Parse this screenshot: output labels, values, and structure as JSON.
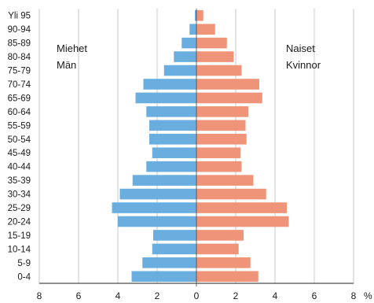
{
  "chart_data": {
    "type": "bar",
    "orientation": "horizontal-population-pyramid",
    "categories": [
      "0-4",
      "5-9",
      "10-14",
      "15-19",
      "20-24",
      "25-29",
      "30-34",
      "35-39",
      "40-44",
      "45-49",
      "50-54",
      "55-59",
      "60-64",
      "65-69",
      "70-74",
      "75-79",
      "80-84",
      "85-89",
      "90-94",
      "Yli 95"
    ],
    "series": [
      {
        "values": [
          3.3,
          2.75,
          2.25,
          2.2,
          4.0,
          4.3,
          3.9,
          3.25,
          2.55,
          2.25,
          2.4,
          2.4,
          2.55,
          3.1,
          2.7,
          1.65,
          1.15,
          0.75,
          0.35,
          0.08
        ],
        "color": "#6aaee0",
        "side": "left"
      },
      {
        "values": [
          3.15,
          2.75,
          2.15,
          2.4,
          4.7,
          4.6,
          3.55,
          2.9,
          2.3,
          2.25,
          2.55,
          2.5,
          2.65,
          3.35,
          3.2,
          2.3,
          1.9,
          1.55,
          0.95,
          0.35
        ],
        "color": "#ef9478",
        "side": "right"
      }
    ],
    "x_ticks": [
      "8",
      "6",
      "4",
      "2",
      "0",
      "2",
      "4",
      "6",
      "8"
    ],
    "x_unit": "%",
    "xlim": [
      -8,
      8
    ],
    "grid": true,
    "annotations": {
      "left": [
        "Miehet",
        "Män"
      ],
      "right": [
        "Naiset",
        "Kvinnor"
      ]
    }
  }
}
